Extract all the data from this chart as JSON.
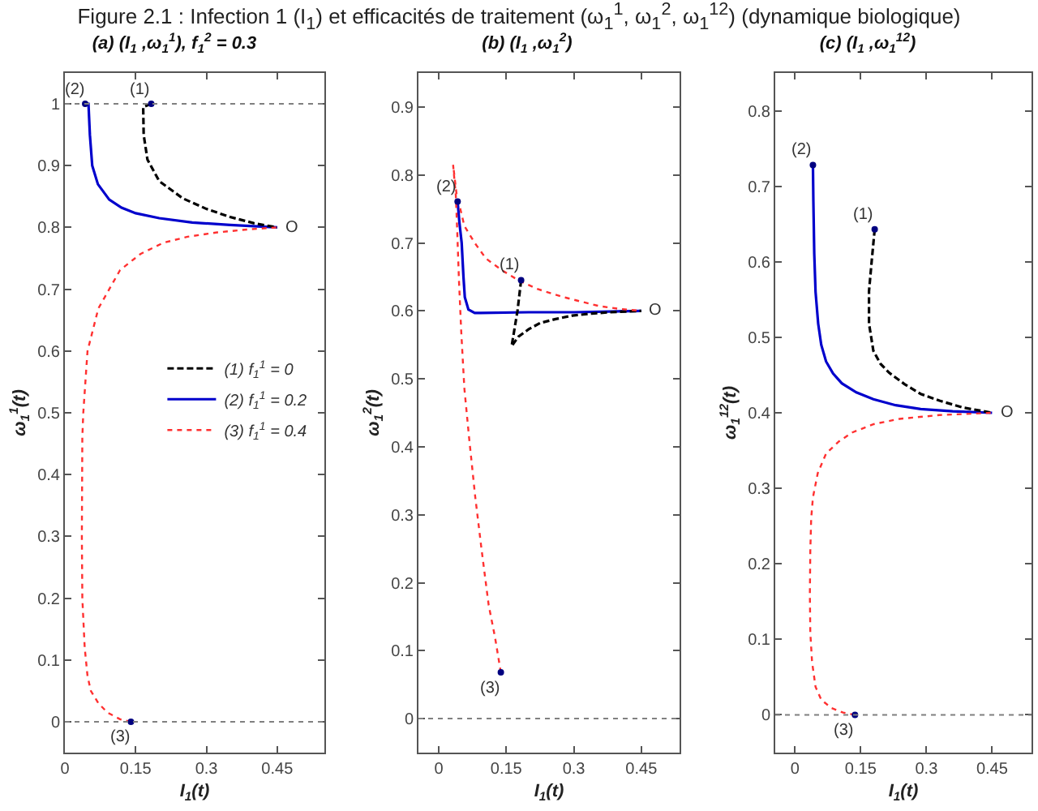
{
  "chart_data": [
    {
      "type": "line",
      "title": "Figure 2.1 :    Infection 1 (I$_{1}$) et efficacités de traitement (ω$_{1}$$^{1}$, ω$_{1}$$^{2}$, ω$_{1}$$^{12}$) (dynamique biologique)",
      "subtitle": "(a) (I$_{1}$ ,ω$_{1}$$^{1}$), f$_{1}$$^{2}$ = 0.3",
      "xlabel": "I$_{1}$(t)",
      "ylabel": "ω$_{1}$$^{1}$(t)",
      "xlim": [
        0,
        0.55
      ],
      "xticks": [
        0,
        0.15,
        0.3,
        0.45
      ],
      "ylim": [
        -0.05,
        1.05
      ],
      "yticks": [
        0,
        0.1,
        0.2,
        0.3,
        0.4,
        0.5,
        0.6,
        0.7,
        0.8,
        0.9,
        1
      ],
      "legend": "right",
      "series": [
        {
          "name": "(1) f$_{1}$$^{1}$ = 0",
          "color": "#000000",
          "line_style": "dashed",
          "x": [
            0.183,
            0.166,
            0.167,
            0.175,
            0.2,
            0.25,
            0.3,
            0.35,
            0.4,
            0.45
          ],
          "values": [
            1,
            0.995,
            0.95,
            0.91,
            0.875,
            0.847,
            0.83,
            0.817,
            0.807,
            0.8
          ]
        },
        {
          "name": "(2) f$_{1}$$^{1}$ = 0.2",
          "color": "#0000cc",
          "line_style": "solid",
          "x": [
            0.043,
            0.05,
            0.053,
            0.058,
            0.07,
            0.094,
            0.12,
            0.15,
            0.2,
            0.27,
            0.35,
            0.45
          ],
          "values": [
            1,
            1,
            0.95,
            0.9,
            0.87,
            0.845,
            0.832,
            0.823,
            0.815,
            0.808,
            0.804,
            0.8
          ]
        },
        {
          "name": "(3) f$_{1}$$^{1}$ = 0.4",
          "color": "#ff3030",
          "line_style": "dotted",
          "x": [
            0.14,
            0.117,
            0.09,
            0.071,
            0.055,
            0.048,
            0.042,
            0.037,
            0.036,
            0.037,
            0.039,
            0.048,
            0.071,
            0.117,
            0.16,
            0.208,
            0.26,
            0.323,
            0.39,
            0.45
          ],
          "values": [
            0,
            0.004,
            0.015,
            0.03,
            0.05,
            0.074,
            0.12,
            0.2,
            0.3,
            0.46,
            0.5,
            0.6,
            0.669,
            0.731,
            0.757,
            0.775,
            0.785,
            0.792,
            0.797,
            0.8
          ]
        },
        {
          "type": "scatter",
          "marker": "circle",
          "color": "#000080",
          "x": [
            0.183,
            0.043,
            0.14
          ],
          "values": [
            1,
            1,
            0
          ]
        }
      ],
      "ref_lines": [
        {
          "axis": "y",
          "value": 1,
          "color": "#808080",
          "line_style": "dotted"
        },
        {
          "axis": "y",
          "value": 0,
          "color": "#808080",
          "line_style": "dotted"
        }
      ],
      "annotations": [
        {
          "text": "(1)",
          "x": 0.183,
          "y": 1
        },
        {
          "text": "(2)",
          "x": 0.043,
          "y": 1
        },
        {
          "text": "(3)",
          "x": 0.14,
          "y": 0
        },
        {
          "text": "O",
          "x": 0.45,
          "y": 0.8
        }
      ]
    },
    {
      "type": "line",
      "subtitle": "(b) (I$_{1}$ ,ω$_{1}$$^{2}$)",
      "xlabel": "I$_{1}$(t)",
      "ylabel": "ω$_{1}$$^{2}$(t)",
      "xlim": [
        -0.045,
        0.535
      ],
      "xticks": [
        0,
        0.15,
        0.3,
        0.45
      ],
      "ylim": [
        -0.05,
        0.95
      ],
      "yticks": [
        0,
        0.1,
        0.2,
        0.3,
        0.4,
        0.5,
        0.6,
        0.7,
        0.8,
        0.9
      ],
      "series": [
        {
          "color": "#000000",
          "line_style": "dashed",
          "x": [
            0.183,
            0.175,
            0.165,
            0.162,
            0.177,
            0.2,
            0.225,
            0.26,
            0.297,
            0.34,
            0.381,
            0.45
          ],
          "values": [
            0.645,
            0.6,
            0.56,
            0.548,
            0.562,
            0.573,
            0.582,
            0.588,
            0.593,
            0.596,
            0.598,
            0.6
          ]
        },
        {
          "color": "#0000cc",
          "line_style": "solid",
          "x": [
            0.042,
            0.046,
            0.051,
            0.055,
            0.058,
            0.066,
            0.08,
            0.093,
            0.2,
            0.3,
            0.45
          ],
          "values": [
            0.761,
            0.73,
            0.7,
            0.65,
            0.62,
            0.602,
            0.597,
            0.597,
            0.598,
            0.598,
            0.6
          ]
        },
        {
          "color": "#ff3030",
          "line_style": "dotted",
          "x": [
            0.138,
            0.125,
            0.111,
            0.095,
            0.081,
            0.068,
            0.057,
            0.05,
            0.045,
            0.041,
            0.038,
            0.032,
            0.04,
            0.048,
            0.057,
            0.08,
            0.105,
            0.14,
            0.177,
            0.22,
            0.273,
            0.32,
            0.357,
            0.4,
            0.45
          ],
          "values": [
            0.068,
            0.12,
            0.167,
            0.25,
            0.327,
            0.41,
            0.486,
            0.57,
            0.645,
            0.72,
            0.77,
            0.815,
            0.77,
            0.75,
            0.725,
            0.7,
            0.677,
            0.66,
            0.645,
            0.632,
            0.621,
            0.613,
            0.607,
            0.603,
            0.6
          ]
        },
        {
          "type": "scatter",
          "marker": "circle",
          "color": "#000080",
          "x": [
            0.183,
            0.042,
            0.138
          ],
          "values": [
            0.645,
            0.761,
            0.068
          ]
        }
      ],
      "ref_lines": [
        {
          "axis": "y",
          "value": 0,
          "color": "#808080",
          "line_style": "dotted"
        }
      ],
      "annotations": [
        {
          "text": "(1)",
          "x": 0.183,
          "y": 0.645
        },
        {
          "text": "(2)",
          "x": 0.042,
          "y": 0.761
        },
        {
          "text": "(3)",
          "x": 0.138,
          "y": 0.068
        },
        {
          "text": "O",
          "x": 0.45,
          "y": 0.6
        }
      ]
    },
    {
      "type": "line",
      "subtitle": "(c) (I$_{1}$ ,ω$_{1}$$^{12}$)",
      "xlabel": "I$_{1}$(t)",
      "ylabel": "ω$_{1}$$^{12}$(t)",
      "xlim": [
        -0.045,
        0.54
      ],
      "xticks": [
        0,
        0.15,
        0.3,
        0.45
      ],
      "ylim": [
        -0.05,
        0.85
      ],
      "yticks": [
        0,
        0.1,
        0.2,
        0.3,
        0.4,
        0.5,
        0.6,
        0.7,
        0.8
      ],
      "series": [
        {
          "color": "#000000",
          "line_style": "dashed",
          "x": [
            0.182,
            0.175,
            0.169,
            0.169,
            0.179,
            0.195,
            0.215,
            0.25,
            0.287,
            0.33,
            0.383,
            0.45
          ],
          "values": [
            0.643,
            0.6,
            0.561,
            0.518,
            0.482,
            0.465,
            0.453,
            0.438,
            0.425,
            0.416,
            0.407,
            0.4
          ]
        },
        {
          "color": "#0000cc",
          "line_style": "solid",
          "x": [
            0.041,
            0.042,
            0.044,
            0.047,
            0.053,
            0.06,
            0.071,
            0.087,
            0.107,
            0.14,
            0.179,
            0.23,
            0.287,
            0.36,
            0.45
          ],
          "values": [
            0.728,
            0.68,
            0.611,
            0.56,
            0.518,
            0.49,
            0.468,
            0.452,
            0.439,
            0.427,
            0.418,
            0.41,
            0.405,
            0.402,
            0.4
          ]
        },
        {
          "color": "#ff3030",
          "line_style": "dotted",
          "x": [
            0.137,
            0.11,
            0.083,
            0.06,
            0.047,
            0.039,
            0.035,
            0.034,
            0.035,
            0.037,
            0.041,
            0.052,
            0.071,
            0.1,
            0.131,
            0.18,
            0.239,
            0.33,
            0.45
          ],
          "values": [
            0,
            0.003,
            0.009,
            0.02,
            0.037,
            0.07,
            0.109,
            0.16,
            0.217,
            0.26,
            0.288,
            0.32,
            0.346,
            0.362,
            0.374,
            0.385,
            0.392,
            0.397,
            0.4
          ]
        },
        {
          "type": "scatter",
          "marker": "circle",
          "color": "#000080",
          "x": [
            0.182,
            0.041,
            0.137
          ],
          "values": [
            0.643,
            0.728,
            0
          ]
        }
      ],
      "ref_lines": [
        {
          "axis": "y",
          "value": 0,
          "color": "#808080",
          "line_style": "dotted"
        }
      ],
      "annotations": [
        {
          "text": "(1)",
          "x": 0.182,
          "y": 0.643
        },
        {
          "text": "(2)",
          "x": 0.041,
          "y": 0.728
        },
        {
          "text": "(3)",
          "x": 0.137,
          "y": 0
        },
        {
          "text": "O",
          "x": 0.45,
          "y": 0.4
        }
      ]
    }
  ]
}
